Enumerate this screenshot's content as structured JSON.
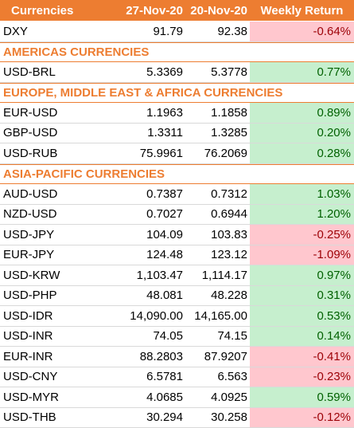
{
  "header": {
    "col1": "Currencies",
    "col2": "27-Nov-20",
    "col3": "20-Nov-20",
    "col4": "Weekly Return"
  },
  "colors": {
    "header_bg": "#ed7d31",
    "positive_bg": "#c6efce",
    "positive_text": "#006100",
    "negative_bg": "#ffc7ce",
    "negative_text": "#9c0006"
  },
  "rows": [
    {
      "type": "data",
      "name": "DXY",
      "v1": "91.79",
      "v2": "92.38",
      "ret": "-0.64%",
      "sign": "neg"
    },
    {
      "type": "section",
      "name": "AMERICAS CURRENCIES"
    },
    {
      "type": "data",
      "name": "USD-BRL",
      "v1": "5.3369",
      "v2": "5.3778",
      "ret": "0.77%",
      "sign": "pos"
    },
    {
      "type": "section",
      "name": "EUROPE, MIDDLE EAST & AFRICA CURRENCIES"
    },
    {
      "type": "data",
      "name": "EUR-USD",
      "v1": "1.1963",
      "v2": "1.1858",
      "ret": "0.89%",
      "sign": "pos"
    },
    {
      "type": "data",
      "name": "GBP-USD",
      "v1": "1.3311",
      "v2": "1.3285",
      "ret": "0.20%",
      "sign": "pos"
    },
    {
      "type": "data",
      "name": "USD-RUB",
      "v1": "75.9961",
      "v2": "76.2069",
      "ret": "0.28%",
      "sign": "pos"
    },
    {
      "type": "section",
      "name": "ASIA-PACIFIC CURRENCIES"
    },
    {
      "type": "data",
      "name": "AUD-USD",
      "v1": "0.7387",
      "v2": "0.7312",
      "ret": "1.03%",
      "sign": "pos"
    },
    {
      "type": "data",
      "name": "NZD-USD",
      "v1": "0.7027",
      "v2": "0.6944",
      "ret": "1.20%",
      "sign": "pos"
    },
    {
      "type": "data",
      "name": "USD-JPY",
      "v1": "104.09",
      "v2": "103.83",
      "ret": "-0.25%",
      "sign": "neg"
    },
    {
      "type": "data",
      "name": "EUR-JPY",
      "v1": "124.48",
      "v2": "123.12",
      "ret": "-1.09%",
      "sign": "neg"
    },
    {
      "type": "data",
      "name": "USD-KRW",
      "v1": "1,103.47",
      "v2": "1,114.17",
      "ret": "0.97%",
      "sign": "pos"
    },
    {
      "type": "data",
      "name": "USD-PHP",
      "v1": "48.081",
      "v2": "48.228",
      "ret": "0.31%",
      "sign": "pos"
    },
    {
      "type": "data",
      "name": "USD-IDR",
      "v1": "14,090.00",
      "v2": "14,165.00",
      "ret": "0.53%",
      "sign": "pos"
    },
    {
      "type": "data",
      "name": "USD-INR",
      "v1": "74.05",
      "v2": "74.15",
      "ret": "0.14%",
      "sign": "pos"
    },
    {
      "type": "data",
      "name": "EUR-INR",
      "v1": "88.2803",
      "v2": "87.9207",
      "ret": "-0.41%",
      "sign": "neg"
    },
    {
      "type": "data",
      "name": "USD-CNY",
      "v1": "6.5781",
      "v2": "6.563",
      "ret": "-0.23%",
      "sign": "neg"
    },
    {
      "type": "data",
      "name": "USD-MYR",
      "v1": "4.0685",
      "v2": "4.0925",
      "ret": "0.59%",
      "sign": "pos"
    },
    {
      "type": "data",
      "name": "USD-THB",
      "v1": "30.294",
      "v2": "30.258",
      "ret": "-0.12%",
      "sign": "neg"
    }
  ]
}
